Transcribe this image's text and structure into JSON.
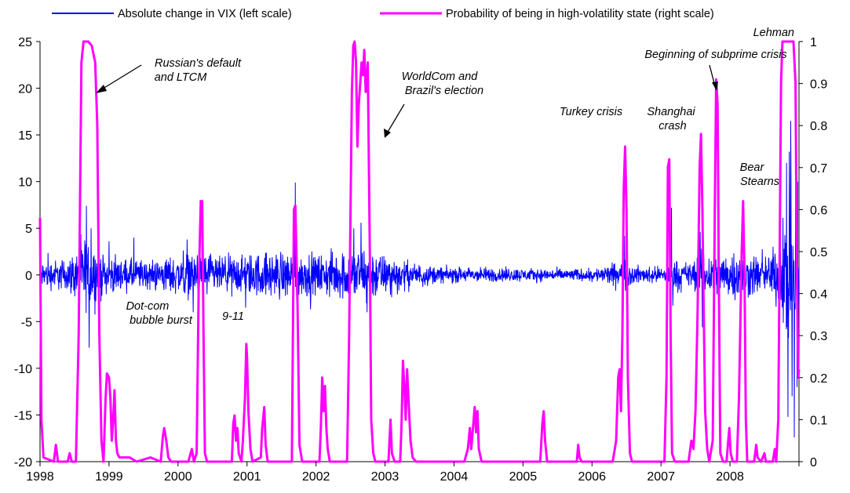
{
  "chart_data": {
    "type": "line",
    "legend": [
      {
        "name": "Absolute change in VIX (left scale)",
        "color": "#0000ff"
      },
      {
        "name": "Probability of being in high-volatility state (right scale)",
        "color": "#ff00ff"
      }
    ],
    "legend_position": "top",
    "grid": false,
    "x_ticks": [
      "1998",
      "1999",
      "2000",
      "2001",
      "2002",
      "2003",
      "2004",
      "2005",
      "2006",
      "2007",
      "2008"
    ],
    "xlim": [
      1998,
      2009
    ],
    "y_left": {
      "ticks": [
        "25",
        "20",
        "15",
        "10",
        "5",
        "0",
        "-5",
        "-10",
        "-15",
        "-20"
      ],
      "lim": [
        -20,
        25
      ]
    },
    "y_right": {
      "ticks": [
        "1",
        "0.9",
        "0.8",
        "0.7",
        "0.6",
        "0.5",
        "0.4",
        "0.3",
        "0.2",
        "0.1",
        "0"
      ],
      "lim": [
        0,
        1
      ]
    },
    "annotations": [
      {
        "text": [
          "Russian's default",
          "and LTCM"
        ],
        "has_arrow": true
      },
      {
        "text": [
          "WorldCom and",
          "Brazil's election"
        ],
        "has_arrow": true
      },
      {
        "text": [
          "Beginning of subprime crisis"
        ],
        "has_arrow": true
      },
      {
        "text": [
          "Lehman"
        ],
        "has_arrow": false
      },
      {
        "text": [
          "Turkey crisis"
        ],
        "has_arrow": false
      },
      {
        "text": [
          "Shanghai",
          "crash"
        ],
        "has_arrow": false
      },
      {
        "text": [
          "Bear",
          "Stearns"
        ],
        "has_arrow": false
      },
      {
        "text": [
          "Dot-com",
          "bubble burst"
        ],
        "has_arrow": false
      },
      {
        "text": [
          "9-11"
        ],
        "has_arrow": false
      }
    ],
    "series": [
      {
        "name": "Probability of being in high-volatility state (right scale)",
        "axis": "right",
        "color": "#ff00ff",
        "points": [
          [
            1998.0,
            0.58
          ],
          [
            1998.02,
            0.1
          ],
          [
            1998.05,
            0.01
          ],
          [
            1998.2,
            0.0
          ],
          [
            1998.23,
            0.04
          ],
          [
            1998.26,
            0.0
          ],
          [
            1998.4,
            0.0
          ],
          [
            1998.43,
            0.02
          ],
          [
            1998.46,
            0.0
          ],
          [
            1998.52,
            0.0
          ],
          [
            1998.56,
            0.3
          ],
          [
            1998.6,
            0.95
          ],
          [
            1998.63,
            1.0
          ],
          [
            1998.7,
            1.0
          ],
          [
            1998.75,
            0.99
          ],
          [
            1998.8,
            0.95
          ],
          [
            1998.83,
            0.8
          ],
          [
            1998.86,
            0.3
          ],
          [
            1998.89,
            0.05
          ],
          [
            1998.92,
            0.0
          ],
          [
            1998.95,
            0.15
          ],
          [
            1998.97,
            0.21
          ],
          [
            1999.0,
            0.2
          ],
          [
            1999.02,
            0.15
          ],
          [
            1999.04,
            0.05
          ],
          [
            1999.06,
            0.1
          ],
          [
            1999.08,
            0.17
          ],
          [
            1999.1,
            0.05
          ],
          [
            1999.12,
            0.02
          ],
          [
            1999.15,
            0.01
          ],
          [
            1999.3,
            0.01
          ],
          [
            1999.4,
            0.0
          ],
          [
            1999.6,
            0.01
          ],
          [
            1999.75,
            0.0
          ],
          [
            1999.78,
            0.06
          ],
          [
            1999.8,
            0.08
          ],
          [
            1999.83,
            0.05
          ],
          [
            1999.86,
            0.01
          ],
          [
            1999.9,
            0.0
          ],
          [
            2000.15,
            0.0
          ],
          [
            2000.2,
            0.03
          ],
          [
            2000.23,
            0.0
          ],
          [
            2000.27,
            0.02
          ],
          [
            2000.3,
            0.42
          ],
          [
            2000.33,
            0.62
          ],
          [
            2000.35,
            0.62
          ],
          [
            2000.37,
            0.3
          ],
          [
            2000.39,
            0.02
          ],
          [
            2000.42,
            0.0
          ],
          [
            2000.78,
            0.0
          ],
          [
            2000.8,
            0.09
          ],
          [
            2000.82,
            0.11
          ],
          [
            2000.84,
            0.05
          ],
          [
            2000.86,
            0.08
          ],
          [
            2000.88,
            0.02
          ],
          [
            2000.92,
            0.0
          ],
          [
            2000.94,
            0.05
          ],
          [
            2000.97,
            0.15
          ],
          [
            2000.99,
            0.28
          ],
          [
            2001.0,
            0.25
          ],
          [
            2001.02,
            0.12
          ],
          [
            2001.05,
            0.03
          ],
          [
            2001.08,
            0.0
          ],
          [
            2001.2,
            0.01
          ],
          [
            2001.22,
            0.08
          ],
          [
            2001.25,
            0.13
          ],
          [
            2001.27,
            0.04
          ],
          [
            2001.3,
            0.0
          ],
          [
            2001.65,
            0.0
          ],
          [
            2001.68,
            0.6
          ],
          [
            2001.7,
            0.61
          ],
          [
            2001.73,
            0.4
          ],
          [
            2001.76,
            0.04
          ],
          [
            2001.8,
            0.0
          ],
          [
            2002.05,
            0.0
          ],
          [
            2002.07,
            0.08
          ],
          [
            2002.09,
            0.2
          ],
          [
            2002.11,
            0.12
          ],
          [
            2002.13,
            0.18
          ],
          [
            2002.15,
            0.08
          ],
          [
            2002.17,
            0.03
          ],
          [
            2002.2,
            0.0
          ],
          [
            2002.45,
            0.0
          ],
          [
            2002.48,
            0.3
          ],
          [
            2002.52,
            0.88
          ],
          [
            2002.54,
            0.99
          ],
          [
            2002.56,
            1.0
          ],
          [
            2002.58,
            0.95
          ],
          [
            2002.6,
            0.75
          ],
          [
            2002.62,
            0.85
          ],
          [
            2002.64,
            0.9
          ],
          [
            2002.66,
            0.95
          ],
          [
            2002.68,
            0.92
          ],
          [
            2002.7,
            0.98
          ],
          [
            2002.72,
            0.88
          ],
          [
            2002.75,
            0.95
          ],
          [
            2002.78,
            0.5
          ],
          [
            2002.8,
            0.1
          ],
          [
            2002.83,
            0.02
          ],
          [
            2002.86,
            0.0
          ],
          [
            2003.05,
            0.0
          ],
          [
            2003.08,
            0.1
          ],
          [
            2003.1,
            0.02
          ],
          [
            2003.14,
            0.0
          ],
          [
            2003.22,
            0.0
          ],
          [
            2003.24,
            0.09
          ],
          [
            2003.26,
            0.24
          ],
          [
            2003.28,
            0.18
          ],
          [
            2003.3,
            0.1
          ],
          [
            2003.32,
            0.22
          ],
          [
            2003.34,
            0.15
          ],
          [
            2003.37,
            0.05
          ],
          [
            2003.4,
            0.01
          ],
          [
            2003.45,
            0.0
          ],
          [
            2004.15,
            0.0
          ],
          [
            2004.2,
            0.03
          ],
          [
            2004.23,
            0.08
          ],
          [
            2004.25,
            0.03
          ],
          [
            2004.3,
            0.13
          ],
          [
            2004.32,
            0.07
          ],
          [
            2004.34,
            0.12
          ],
          [
            2004.36,
            0.03
          ],
          [
            2004.4,
            0.0
          ],
          [
            2005.25,
            0.0
          ],
          [
            2005.28,
            0.09
          ],
          [
            2005.3,
            0.12
          ],
          [
            2005.32,
            0.05
          ],
          [
            2005.35,
            0.0
          ],
          [
            2005.78,
            0.0
          ],
          [
            2005.8,
            0.04
          ],
          [
            2005.82,
            0.01
          ],
          [
            2005.85,
            0.0
          ],
          [
            2006.3,
            0.0
          ],
          [
            2006.35,
            0.05
          ],
          [
            2006.38,
            0.2
          ],
          [
            2006.4,
            0.22
          ],
          [
            2006.42,
            0.12
          ],
          [
            2006.44,
            0.3
          ],
          [
            2006.46,
            0.65
          ],
          [
            2006.48,
            0.75
          ],
          [
            2006.5,
            0.6
          ],
          [
            2006.52,
            0.2
          ],
          [
            2006.55,
            0.02
          ],
          [
            2006.58,
            0.0
          ],
          [
            2007.05,
            0.0
          ],
          [
            2007.08,
            0.2
          ],
          [
            2007.1,
            0.7
          ],
          [
            2007.12,
            0.72
          ],
          [
            2007.14,
            0.3
          ],
          [
            2007.16,
            0.02
          ],
          [
            2007.2,
            0.0
          ],
          [
            2007.4,
            0.0
          ],
          [
            2007.44,
            0.05
          ],
          [
            2007.47,
            0.03
          ],
          [
            2007.5,
            0.12
          ],
          [
            2007.53,
            0.35
          ],
          [
            2007.56,
            0.7
          ],
          [
            2007.58,
            0.78
          ],
          [
            2007.6,
            0.6
          ],
          [
            2007.62,
            0.35
          ],
          [
            2007.64,
            0.12
          ],
          [
            2007.67,
            0.03
          ],
          [
            2007.7,
            0.0
          ],
          [
            2007.75,
            0.05
          ],
          [
            2007.78,
            0.6
          ],
          [
            2007.8,
            0.91
          ],
          [
            2007.82,
            0.85
          ],
          [
            2007.84,
            0.4
          ],
          [
            2007.86,
            0.02
          ],
          [
            2007.9,
            0.0
          ],
          [
            2007.95,
            0.0
          ],
          [
            2007.97,
            0.04
          ],
          [
            2007.99,
            0.08
          ],
          [
            2008.01,
            0.02
          ],
          [
            2008.04,
            0.0
          ],
          [
            2008.1,
            0.0
          ],
          [
            2008.13,
            0.15
          ],
          [
            2008.17,
            0.5
          ],
          [
            2008.19,
            0.62
          ],
          [
            2008.21,
            0.45
          ],
          [
            2008.23,
            0.1
          ],
          [
            2008.25,
            0.0
          ],
          [
            2008.35,
            0.0
          ],
          [
            2008.38,
            0.04
          ],
          [
            2008.4,
            0.01
          ],
          [
            2008.45,
            0.0
          ],
          [
            2008.5,
            0.02
          ],
          [
            2008.52,
            0.0
          ],
          [
            2008.58,
            0.0
          ],
          [
            2008.62,
            0.0
          ],
          [
            2008.65,
            0.03
          ],
          [
            2008.67,
            0.0
          ],
          [
            2008.7,
            0.1
          ],
          [
            2008.72,
            0.5
          ],
          [
            2008.74,
            0.9
          ],
          [
            2008.76,
            1.0
          ],
          [
            2008.85,
            1.0
          ],
          [
            2008.92,
            1.0
          ],
          [
            2008.95,
            0.9
          ],
          [
            2008.97,
            0.45
          ],
          [
            2008.99,
            0.2
          ],
          [
            2009.0,
            0.22
          ]
        ]
      },
      {
        "name": "Absolute change in VIX (left scale)",
        "axis": "left",
        "color": "#0000ff",
        "volatility_envelope": [
          [
            1998.0,
            1.6
          ],
          [
            1998.4,
            1.8
          ],
          [
            1998.55,
            3.0
          ],
          [
            1998.65,
            4.2
          ],
          [
            1998.8,
            3.5
          ],
          [
            1998.95,
            2.0
          ],
          [
            1999.2,
            1.8
          ],
          [
            1999.6,
            1.7
          ],
          [
            2000.0,
            2.2
          ],
          [
            2000.3,
            2.8
          ],
          [
            2000.6,
            2.0
          ],
          [
            2001.0,
            2.4
          ],
          [
            2001.65,
            2.8
          ],
          [
            2002.0,
            2.2
          ],
          [
            2002.5,
            3.0
          ],
          [
            2002.75,
            3.2
          ],
          [
            2003.0,
            2.2
          ],
          [
            2003.4,
            1.4
          ],
          [
            2003.8,
            0.9
          ],
          [
            2004.5,
            0.85
          ],
          [
            2005.0,
            0.75
          ],
          [
            2005.5,
            0.7
          ],
          [
            2006.0,
            0.7
          ],
          [
            2006.45,
            1.6
          ],
          [
            2006.7,
            0.9
          ],
          [
            2007.0,
            0.9
          ],
          [
            2007.15,
            1.8
          ],
          [
            2007.4,
            1.4
          ],
          [
            2007.6,
            2.6
          ],
          [
            2007.85,
            2.5
          ],
          [
            2008.2,
            2.8
          ],
          [
            2008.5,
            2.0
          ],
          [
            2008.7,
            3.5
          ],
          [
            2008.8,
            8.0
          ],
          [
            2008.9,
            9.0
          ],
          [
            2008.99,
            5.0
          ]
        ],
        "spikes": [
          [
            1998.67,
            7.4
          ],
          [
            1998.71,
            -7.8
          ],
          [
            1998.74,
            5.0
          ],
          [
            1999.0,
            3.6
          ],
          [
            1999.36,
            4.0
          ],
          [
            2000.13,
            3.8
          ],
          [
            2000.22,
            -4.0
          ],
          [
            2000.35,
            5.5
          ],
          [
            2000.98,
            -3.5
          ],
          [
            2001.7,
            9.9
          ],
          [
            2001.72,
            -3.0
          ],
          [
            2002.55,
            5.0
          ],
          [
            2002.74,
            -4.0
          ],
          [
            2002.65,
            5.6
          ],
          [
            2006.45,
            -5.6
          ],
          [
            2006.47,
            4.2
          ],
          [
            2007.15,
            7.2
          ],
          [
            2007.17,
            -3.3
          ],
          [
            2007.57,
            4.6
          ],
          [
            2007.6,
            -5.6
          ],
          [
            2007.83,
            3.6
          ],
          [
            2008.2,
            3.8
          ],
          [
            2008.22,
            -3.2
          ],
          [
            2008.82,
            12.0
          ],
          [
            2008.84,
            -15.2
          ],
          [
            2008.86,
            13.2
          ],
          [
            2008.88,
            16.5
          ],
          [
            2008.9,
            -13.0
          ],
          [
            2008.93,
            -17.4
          ],
          [
            2008.95,
            16.4
          ],
          [
            2008.97,
            -12.0
          ],
          [
            2008.98,
            10.0
          ]
        ]
      }
    ]
  }
}
